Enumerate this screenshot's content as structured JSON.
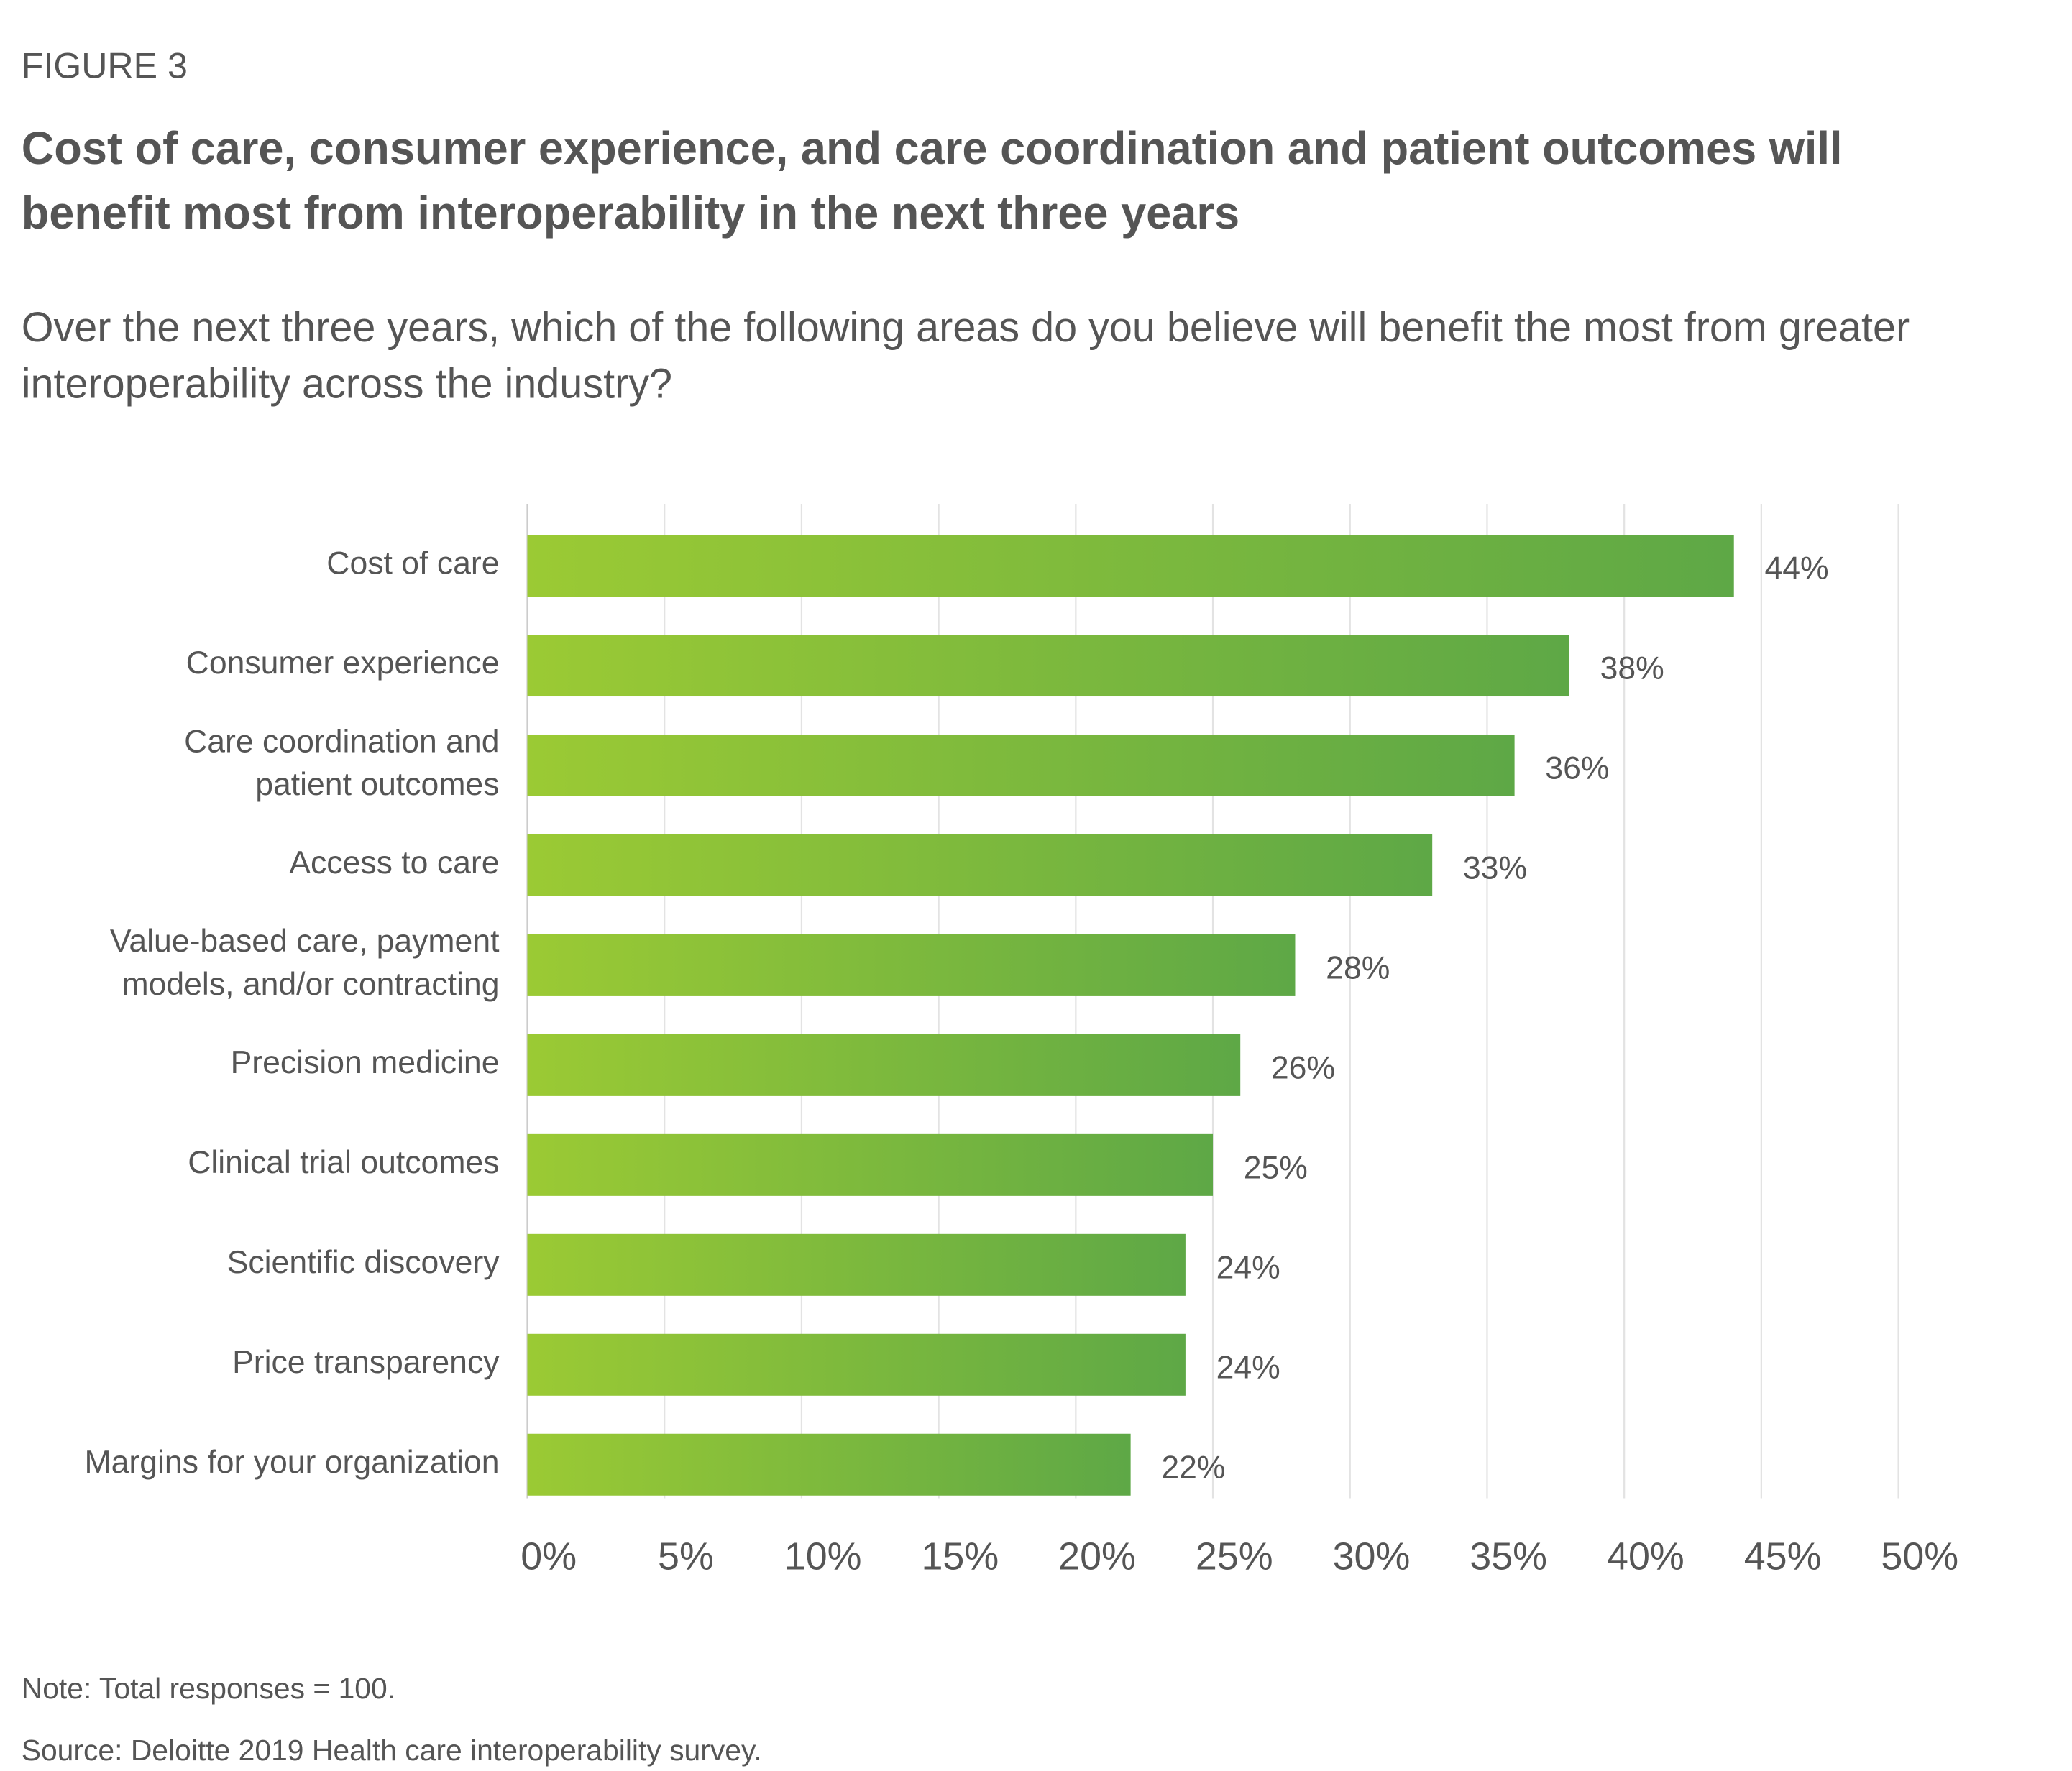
{
  "chart_data": {
    "type": "bar",
    "orientation": "horizontal",
    "figure_label": "FIGURE 3",
    "title": "Cost of care, consumer experience, and care coordination and patient outcomes will benefit most from interoperability in the next three years",
    "subtitle": "Over the next three years, which of the following areas do you believe will benefit the most from greater interoperability across the industry?",
    "categories": [
      "Cost of care",
      "Consumer experience",
      "Care coordination and\npatient outcomes",
      "Access to care",
      "Value-based care, payment\nmodels, and/or contracting",
      "Precision medicine",
      "Clinical trial outcomes",
      "Scientific discovery",
      "Price transparency",
      "Margins for your organization"
    ],
    "values": [
      44,
      38,
      36,
      33,
      28,
      26,
      25,
      24,
      24,
      22
    ],
    "value_labels": [
      "44%",
      "38%",
      "36%",
      "33%",
      "28%",
      "26%",
      "25%",
      "24%",
      "24%",
      "22%"
    ],
    "colors": [
      "#9bca34",
      "#5ea846"
    ],
    "xlim": [
      0,
      50
    ],
    "xticks": [
      {
        "value": 0,
        "label": "0%"
      },
      {
        "value": 5,
        "label": "5%"
      },
      {
        "value": 10,
        "label": "10%"
      },
      {
        "value": 15,
        "label": "15%"
      },
      {
        "value": 20,
        "label": "20%"
      },
      {
        "value": 25,
        "label": "25%"
      },
      {
        "value": 30,
        "label": "30%"
      },
      {
        "value": 35,
        "label": "35%"
      },
      {
        "value": 40,
        "label": "40%"
      },
      {
        "value": 45,
        "label": "45%"
      },
      {
        "value": 50,
        "label": "50%"
      }
    ],
    "grid": true,
    "note": "Note: Total responses = 100.",
    "source": "Source: Deloitte 2019 Health care interoperability survey."
  }
}
